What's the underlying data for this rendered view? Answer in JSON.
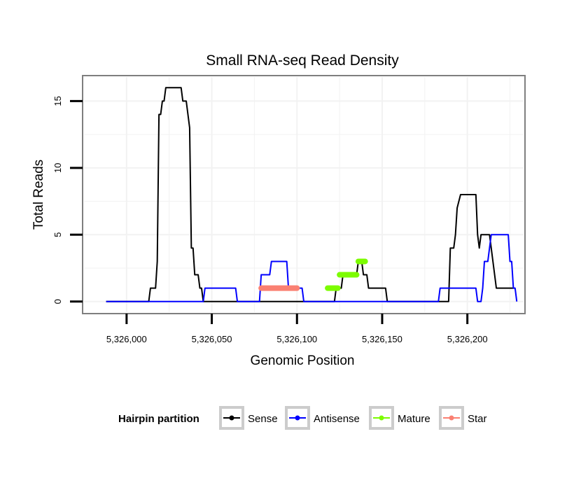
{
  "chart_data": {
    "type": "line",
    "title": "Small RNA-seq Read Density",
    "xlabel": "Genomic Position",
    "ylabel": "Total Reads",
    "xlim": [
      5325975,
      5326233
    ],
    "ylim": [
      -0.8,
      16.8
    ],
    "x_ticks": [
      5326000,
      5326050,
      5326100,
      5326150,
      5326200
    ],
    "x_tick_labels": [
      "5,326,000",
      "5,326,050",
      "5,326,100",
      "5,326,150",
      "5,326,200"
    ],
    "y_ticks": [
      0,
      5,
      10,
      15
    ],
    "y_tick_labels": [
      "0",
      "5",
      "10",
      "15"
    ],
    "grid": true,
    "legend": {
      "title": "Hairpin partition",
      "position": "bottom",
      "entries": [
        "Sense",
        "Antisense",
        "Mature",
        "Star"
      ]
    },
    "colors": {
      "Sense": "#000000",
      "Antisense": "#0000ff",
      "Mature": "#7cfc00",
      "Star": "#fa8072",
      "grid": "#f2f2f2",
      "panel_border": "#7f7f7f"
    },
    "series": [
      {
        "name": "Sense",
        "kind": "line",
        "points": [
          [
            5325988,
            0
          ],
          [
            5326013,
            0
          ],
          [
            5326014,
            1
          ],
          [
            5326017,
            1
          ],
          [
            5326018,
            3
          ],
          [
            5326019,
            14
          ],
          [
            5326020,
            14
          ],
          [
            5326021,
            15
          ],
          [
            5326022,
            15
          ],
          [
            5326023,
            16
          ],
          [
            5326032,
            16
          ],
          [
            5326033,
            15
          ],
          [
            5326035,
            15
          ],
          [
            5326037,
            13
          ],
          [
            5326038,
            4
          ],
          [
            5326039,
            4
          ],
          [
            5326040,
            2
          ],
          [
            5326042,
            2
          ],
          [
            5326043,
            1
          ],
          [
            5326044,
            1
          ],
          [
            5326045,
            0
          ],
          [
            5326102,
            0
          ],
          [
            5326120,
            0
          ],
          [
            5326122,
            0
          ],
          [
            5326123,
            1
          ],
          [
            5326126,
            1
          ],
          [
            5326127,
            2
          ],
          [
            5326135,
            2
          ],
          [
            5326136,
            3
          ],
          [
            5326138,
            3
          ],
          [
            5326139,
            2
          ],
          [
            5326141,
            2
          ],
          [
            5326142,
            1
          ],
          [
            5326152,
            1
          ],
          [
            5326153,
            0
          ],
          [
            5326180,
            0
          ],
          [
            5326189,
            0
          ],
          [
            5326190,
            4
          ],
          [
            5326192,
            4
          ],
          [
            5326193,
            5
          ],
          [
            5326194,
            7
          ],
          [
            5326196,
            8
          ],
          [
            5326205,
            8
          ],
          [
            5326206,
            5
          ],
          [
            5326207,
            4
          ],
          [
            5326208,
            5
          ],
          [
            5326213,
            5
          ],
          [
            5326215,
            3
          ],
          [
            5326217,
            1
          ],
          [
            5326228,
            1
          ]
        ]
      },
      {
        "name": "Antisense",
        "kind": "line",
        "points": [
          [
            5325988,
            0
          ],
          [
            5326045,
            0
          ],
          [
            5326046,
            1
          ],
          [
            5326064,
            1
          ],
          [
            5326065,
            0
          ],
          [
            5326078,
            0
          ],
          [
            5326079,
            2
          ],
          [
            5326084,
            2
          ],
          [
            5326085,
            3
          ],
          [
            5326094,
            3
          ],
          [
            5326095,
            1
          ],
          [
            5326103,
            1
          ],
          [
            5326104,
            0
          ],
          [
            5326183,
            0
          ],
          [
            5326184,
            1
          ],
          [
            5326205,
            1
          ],
          [
            5326206,
            0
          ],
          [
            5326208,
            0
          ],
          [
            5326209,
            1
          ],
          [
            5326210,
            3
          ],
          [
            5326212,
            3
          ],
          [
            5326214,
            5
          ],
          [
            5326224,
            5
          ],
          [
            5326225,
            3
          ],
          [
            5326226,
            3
          ],
          [
            5326227,
            1
          ],
          [
            5326228,
            1
          ],
          [
            5326229,
            0
          ]
        ]
      },
      {
        "name": "Mature",
        "kind": "segments",
        "segments": [
          [
            5326118,
            5326124,
            1
          ],
          [
            5326125,
            5326135,
            2
          ],
          [
            5326136,
            5326140,
            3
          ]
        ]
      },
      {
        "name": "Star",
        "kind": "segments",
        "segments": [
          [
            5326079,
            5326100,
            1
          ]
        ]
      }
    ]
  }
}
